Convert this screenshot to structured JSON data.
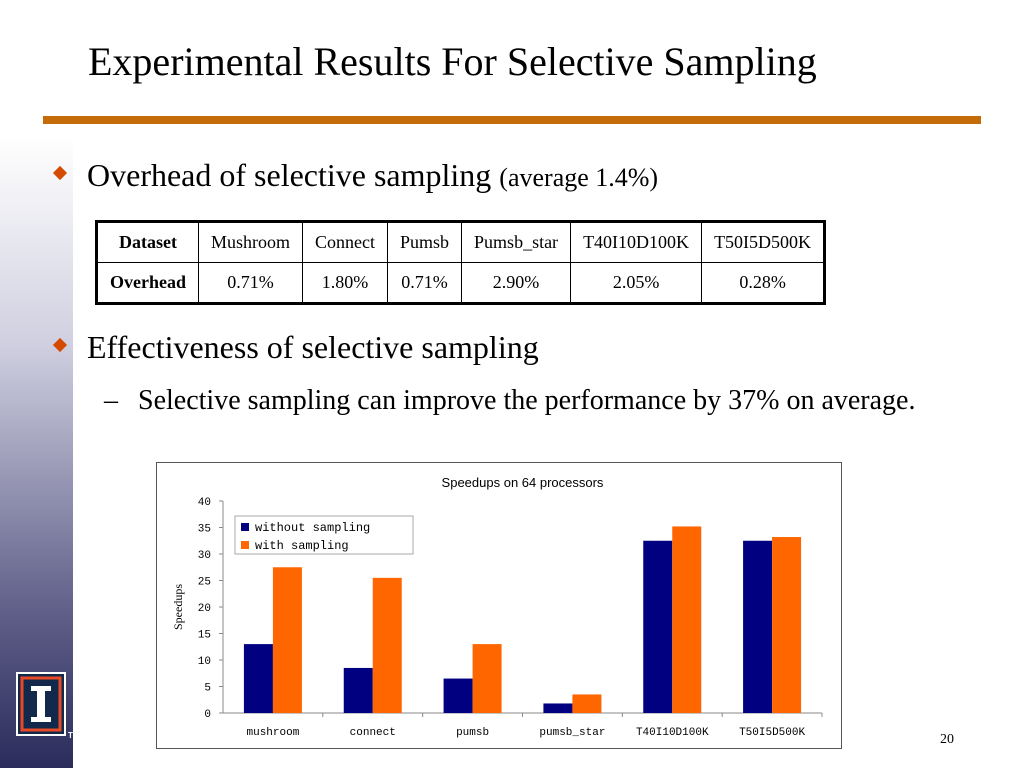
{
  "title": "Experimental Results For Selective Sampling",
  "bullets": {
    "b1_main": "Overhead of  selective sampling ",
    "b1_small": "(average 1.4%)",
    "b2_main": "Effectiveness of  selective sampling",
    "sub_dash": "–",
    "sub_text": "Selective sampling can improve the performance by 37% on average."
  },
  "table": {
    "row1_header": "Dataset",
    "row2_header": "Overhead",
    "datasets": [
      "Mushroom",
      "Connect",
      "Pumsb",
      "Pumsb_star",
      "T40I10D100K",
      "T50I5D500K"
    ],
    "overheads": [
      "0.71%",
      "1.80%",
      "0.71%",
      "2.90%",
      "2.05%",
      "0.28%"
    ]
  },
  "colors": {
    "rule": "#c56c08",
    "bullet": "#d44a00",
    "series_without": "#000080",
    "series_with": "#ff6600"
  },
  "logo_mark": "TM",
  "page_number": "20",
  "chart_data": {
    "type": "bar",
    "title": "Speedups on 64 processors",
    "xlabel": "",
    "ylabel": "Speedups",
    "ylim": [
      0,
      40
    ],
    "yticks": [
      0,
      5,
      10,
      15,
      20,
      25,
      30,
      35,
      40
    ],
    "categories": [
      "mushroom",
      "connect",
      "pumsb",
      "pumsb_star",
      "T40I10D100K",
      "T50I5D500K"
    ],
    "series": [
      {
        "name": "without sampling",
        "values": [
          13,
          8.5,
          6.5,
          1.8,
          32.5,
          32.5
        ]
      },
      {
        "name": "with sampling",
        "values": [
          27.5,
          25.5,
          13,
          3.5,
          35.2,
          33.2
        ]
      }
    ],
    "legend_position": "top-left",
    "grid": false
  }
}
